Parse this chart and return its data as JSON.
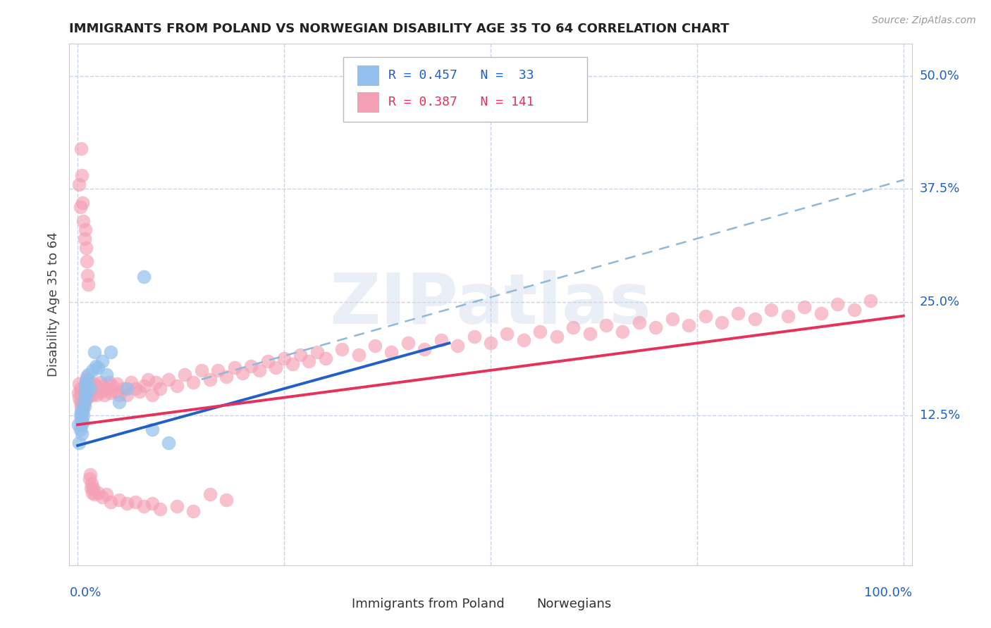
{
  "title": "IMMIGRANTS FROM POLAND VS NORWEGIAN DISABILITY AGE 35 TO 64 CORRELATION CHART",
  "source": "Source: ZipAtlas.com",
  "ylabel": "Disability Age 35 to 64",
  "poland_R": 0.457,
  "poland_N": 33,
  "norway_R": 0.387,
  "norway_N": 141,
  "poland_color": "#92bfed",
  "norway_color": "#f4a0b5",
  "poland_line_color": "#2060c8",
  "norway_line_color": "#e8305a",
  "ci_line_color": "#90b8d8",
  "background_color": "#ffffff",
  "grid_color": "#c8d4e4",
  "ytick_labels": [
    "12.5%",
    "25.0%",
    "37.5%",
    "50.0%"
  ],
  "ytick_vals": [
    0.125,
    0.25,
    0.375,
    0.5
  ],
  "ymin": -0.04,
  "ymax": 0.535,
  "xmin": -0.01,
  "xmax": 1.01,
  "poland_x": [
    0.001,
    0.002,
    0.003,
    0.003,
    0.004,
    0.004,
    0.005,
    0.005,
    0.006,
    0.006,
    0.007,
    0.007,
    0.008,
    0.008,
    0.009,
    0.01,
    0.01,
    0.011,
    0.012,
    0.013,
    0.015,
    0.018,
    0.02,
    0.022,
    0.025,
    0.03,
    0.035,
    0.04,
    0.05,
    0.06,
    0.08,
    0.09,
    0.11
  ],
  "poland_y": [
    0.115,
    0.095,
    0.11,
    0.125,
    0.13,
    0.12,
    0.115,
    0.105,
    0.13,
    0.118,
    0.14,
    0.125,
    0.135,
    0.15,
    0.16,
    0.145,
    0.155,
    0.165,
    0.158,
    0.17,
    0.155,
    0.175,
    0.195,
    0.18,
    0.178,
    0.185,
    0.17,
    0.195,
    0.14,
    0.155,
    0.278,
    0.11,
    0.095
  ],
  "norway_x": [
    0.001,
    0.002,
    0.002,
    0.003,
    0.003,
    0.004,
    0.004,
    0.005,
    0.005,
    0.006,
    0.006,
    0.007,
    0.007,
    0.008,
    0.008,
    0.009,
    0.009,
    0.01,
    0.01,
    0.011,
    0.011,
    0.012,
    0.013,
    0.014,
    0.015,
    0.016,
    0.017,
    0.018,
    0.019,
    0.02,
    0.021,
    0.022,
    0.023,
    0.025,
    0.027,
    0.028,
    0.03,
    0.032,
    0.035,
    0.038,
    0.04,
    0.042,
    0.045,
    0.048,
    0.05,
    0.055,
    0.06,
    0.065,
    0.07,
    0.075,
    0.08,
    0.085,
    0.09,
    0.095,
    0.1,
    0.11,
    0.12,
    0.13,
    0.14,
    0.15,
    0.16,
    0.17,
    0.18,
    0.19,
    0.2,
    0.21,
    0.22,
    0.23,
    0.24,
    0.25,
    0.26,
    0.27,
    0.28,
    0.29,
    0.3,
    0.32,
    0.34,
    0.36,
    0.38,
    0.4,
    0.42,
    0.44,
    0.46,
    0.48,
    0.5,
    0.52,
    0.54,
    0.56,
    0.58,
    0.6,
    0.62,
    0.64,
    0.66,
    0.68,
    0.7,
    0.72,
    0.74,
    0.76,
    0.78,
    0.8,
    0.82,
    0.84,
    0.86,
    0.88,
    0.9,
    0.92,
    0.94,
    0.96,
    0.002,
    0.003,
    0.004,
    0.005,
    0.006,
    0.007,
    0.008,
    0.009,
    0.01,
    0.011,
    0.012,
    0.013,
    0.014,
    0.015,
    0.016,
    0.017,
    0.018,
    0.019,
    0.02,
    0.025,
    0.03,
    0.035,
    0.04,
    0.05,
    0.06,
    0.07,
    0.08,
    0.09,
    0.1,
    0.12,
    0.14,
    0.16,
    0.18
  ],
  "norway_y": [
    0.15,
    0.145,
    0.16,
    0.14,
    0.155,
    0.135,
    0.15,
    0.125,
    0.14,
    0.13,
    0.145,
    0.135,
    0.148,
    0.14,
    0.155,
    0.145,
    0.158,
    0.15,
    0.163,
    0.155,
    0.168,
    0.145,
    0.152,
    0.148,
    0.155,
    0.15,
    0.16,
    0.148,
    0.155,
    0.16,
    0.152,
    0.158,
    0.148,
    0.155,
    0.162,
    0.152,
    0.158,
    0.148,
    0.155,
    0.162,
    0.15,
    0.158,
    0.152,
    0.16,
    0.148,
    0.155,
    0.148,
    0.162,
    0.155,
    0.152,
    0.158,
    0.165,
    0.148,
    0.162,
    0.155,
    0.165,
    0.158,
    0.17,
    0.162,
    0.175,
    0.165,
    0.175,
    0.168,
    0.178,
    0.172,
    0.18,
    0.175,
    0.185,
    0.178,
    0.188,
    0.182,
    0.192,
    0.185,
    0.195,
    0.188,
    0.198,
    0.192,
    0.202,
    0.195,
    0.205,
    0.198,
    0.208,
    0.202,
    0.212,
    0.205,
    0.215,
    0.208,
    0.218,
    0.212,
    0.222,
    0.215,
    0.225,
    0.218,
    0.228,
    0.222,
    0.232,
    0.225,
    0.235,
    0.228,
    0.238,
    0.232,
    0.242,
    0.235,
    0.245,
    0.238,
    0.248,
    0.242,
    0.252,
    0.38,
    0.355,
    0.42,
    0.39,
    0.36,
    0.34,
    0.32,
    0.33,
    0.31,
    0.295,
    0.28,
    0.27,
    0.055,
    0.06,
    0.045,
    0.05,
    0.04,
    0.045,
    0.038,
    0.04,
    0.035,
    0.038,
    0.03,
    0.032,
    0.028,
    0.03,
    0.025,
    0.028,
    0.022,
    0.025,
    0.02,
    0.038,
    0.032
  ]
}
